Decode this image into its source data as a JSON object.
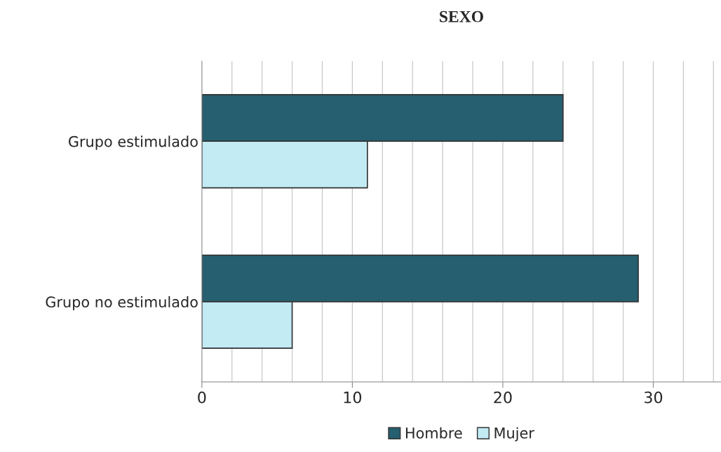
{
  "chart_data": {
    "type": "bar",
    "orientation": "horizontal",
    "title": "SEXO",
    "categories": [
      "Grupo estimulado",
      "Grupo no estimulado"
    ],
    "series": [
      {
        "name": "Hombre",
        "color": "#265f6f",
        "values": [
          24,
          29
        ]
      },
      {
        "name": "Mujer",
        "color": "#c2ebf4",
        "values": [
          11,
          6
        ]
      }
    ],
    "xlim": [
      0,
      34.5
    ],
    "xticks": [
      0,
      {
        "value": 2,
        "label": null
      },
      {
        "value": 4,
        "label": null
      },
      {
        "value": 6,
        "label": null
      },
      {
        "value": 8,
        "label": null
      },
      10,
      {
        "value": 12,
        "label": null
      },
      {
        "value": 14,
        "label": null
      },
      {
        "value": 16,
        "label": null
      },
      {
        "value": 18,
        "label": null
      },
      20,
      {
        "value": 22,
        "label": null
      },
      {
        "value": 24,
        "label": null
      },
      {
        "value": 26,
        "label": null
      },
      {
        "value": 28,
        "label": null
      },
      30,
      {
        "value": 32,
        "label": null
      },
      {
        "value": 34,
        "label": null
      }
    ],
    "grid": "x",
    "legend": "bottom"
  }
}
